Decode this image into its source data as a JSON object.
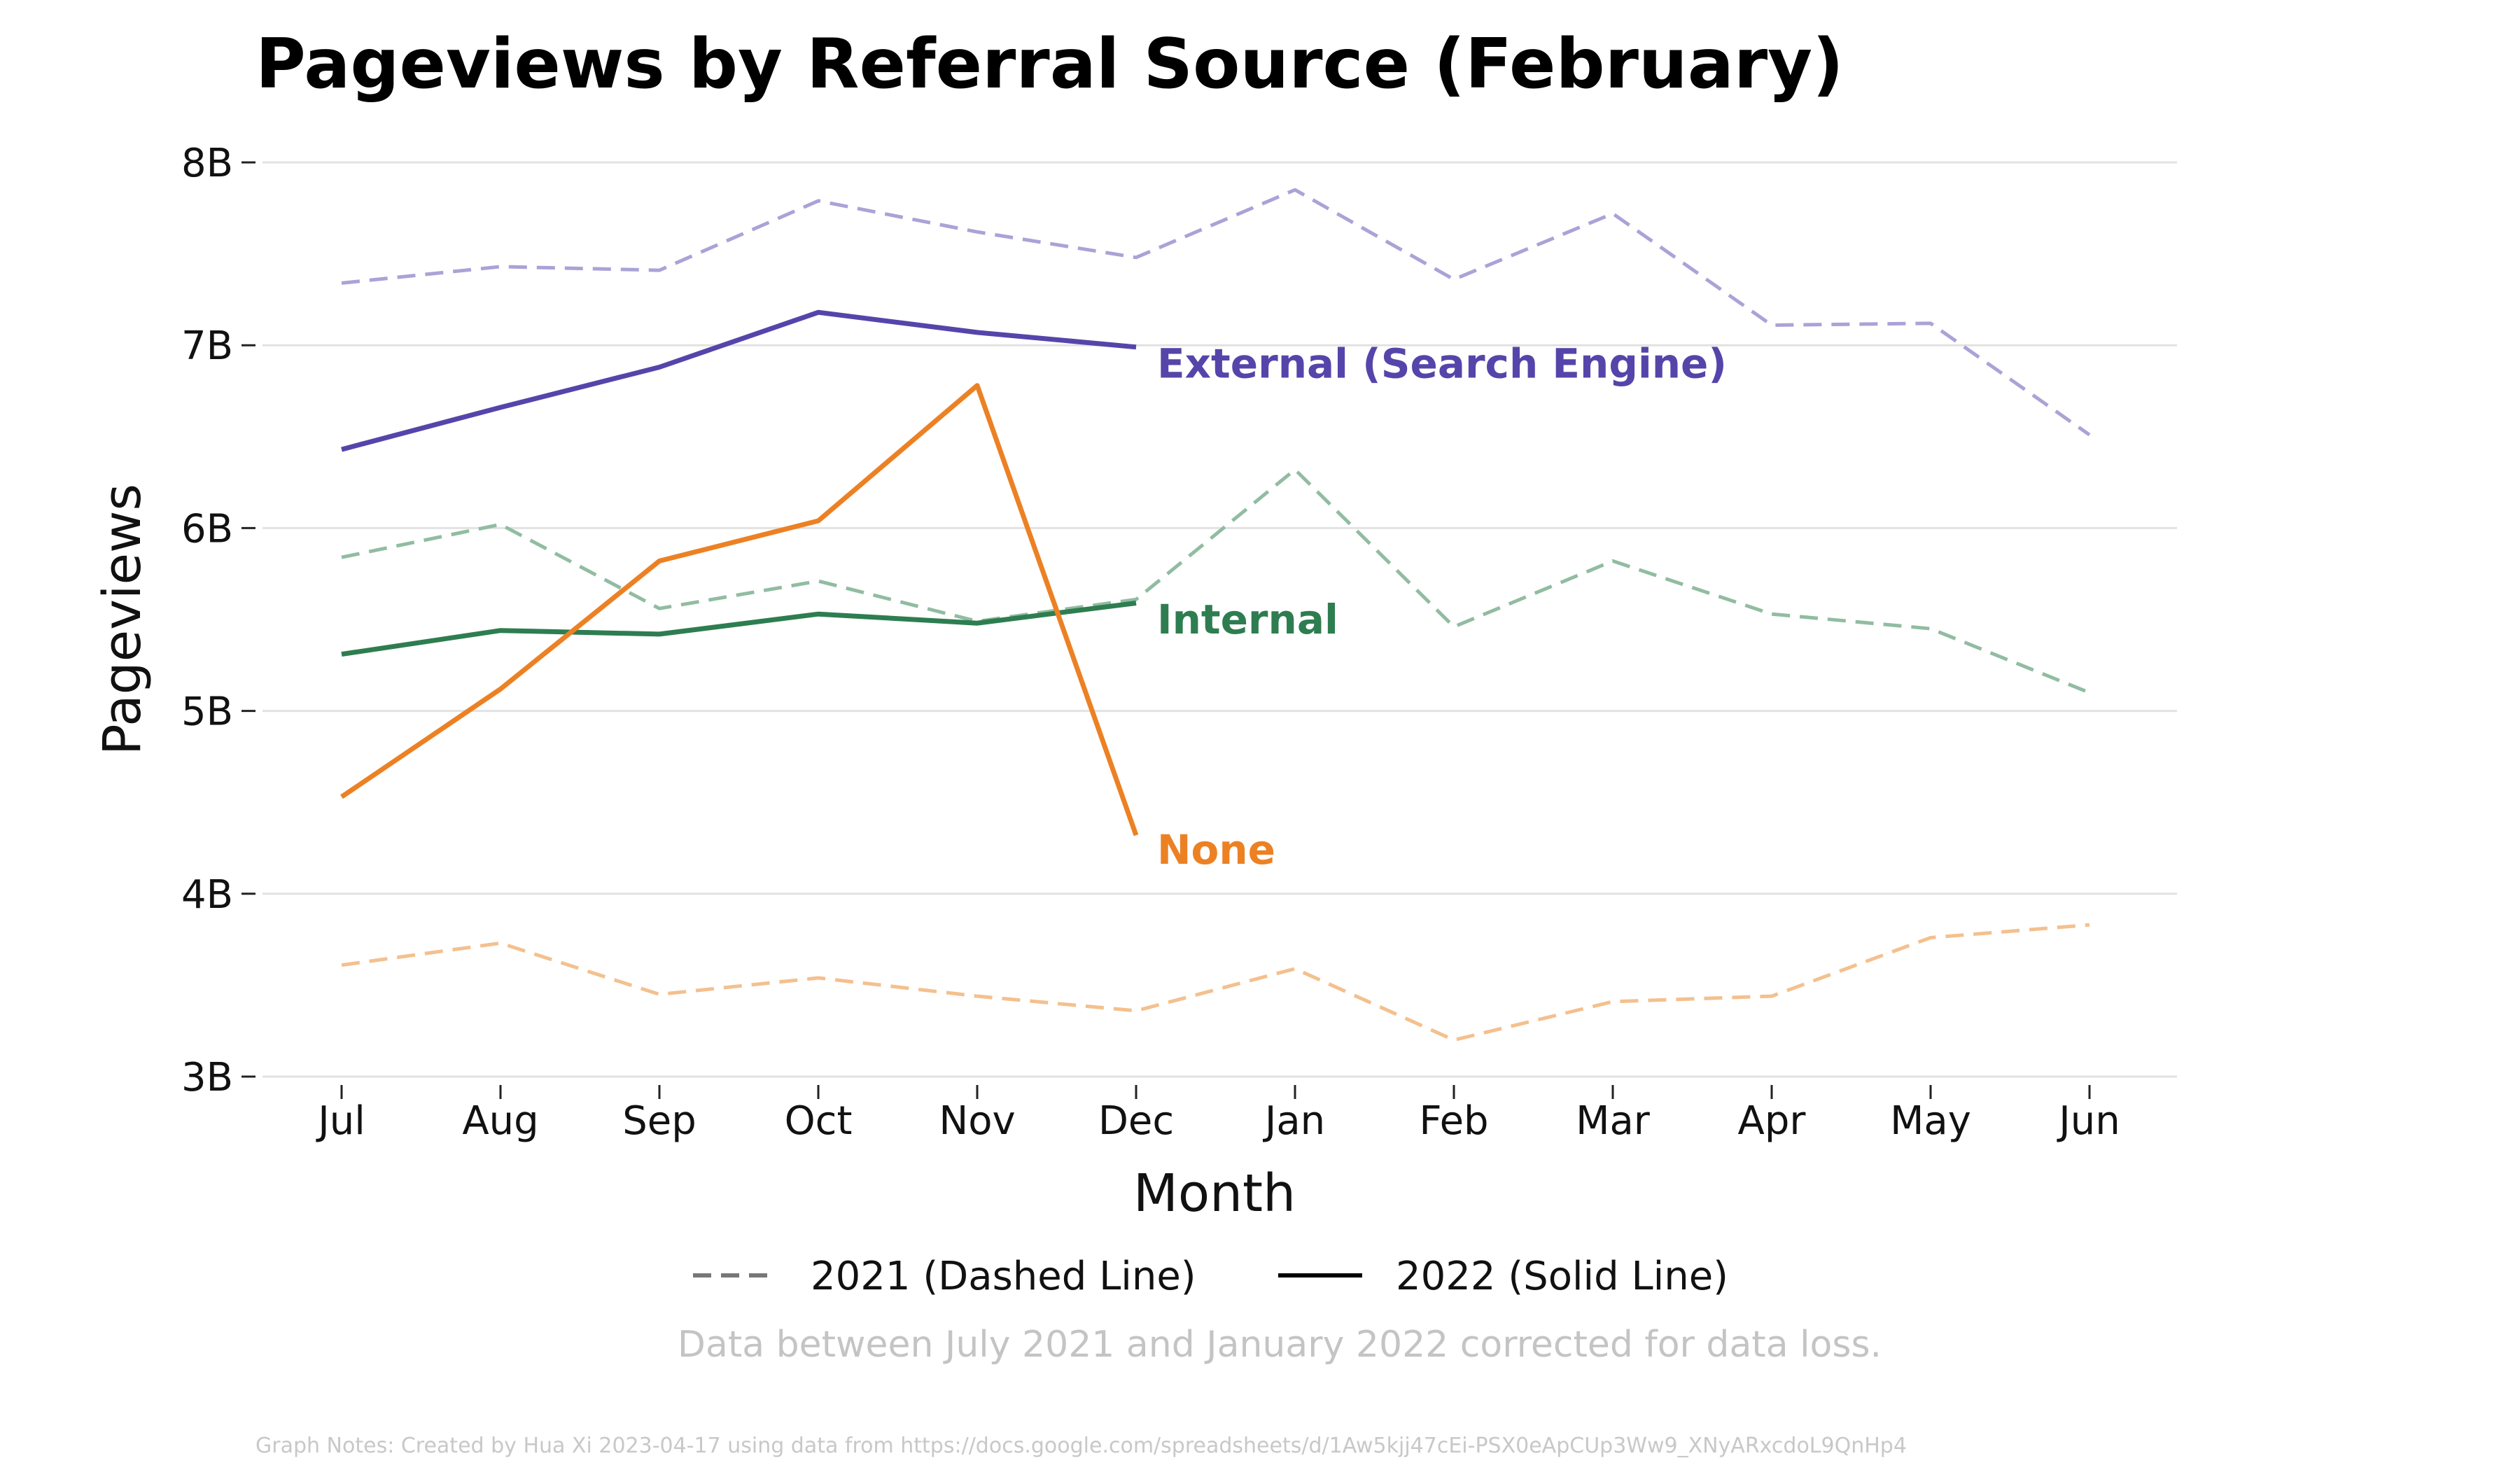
{
  "chart_data": {
    "type": "line",
    "title": "Pageviews by Referral Source (February)",
    "xlabel": "Month",
    "ylabel": "Pageviews",
    "categories": [
      "Jul",
      "Aug",
      "Sep",
      "Oct",
      "Nov",
      "Dec",
      "Jan",
      "Feb",
      "Mar",
      "Apr",
      "May",
      "Jun"
    ],
    "ylim": [
      3,
      8
    ],
    "y_ticks": [
      {
        "value": 8,
        "label": "8B"
      },
      {
        "value": 7,
        "label": "7B"
      },
      {
        "value": 6,
        "label": "6B"
      },
      {
        "value": 5,
        "label": "5B"
      },
      {
        "value": 4,
        "label": "4B"
      },
      {
        "value": 3,
        "label": "3B"
      }
    ],
    "y_unit": "billions of pageviews",
    "grid": "horizontal",
    "series": [
      {
        "name": "External (Search Engine)",
        "year": "2021",
        "style": "dashed",
        "color": "#a9a3d7",
        "values": [
          7.34,
          7.43,
          7.41,
          7.79,
          7.62,
          7.48,
          7.85,
          7.36,
          7.72,
          7.11,
          7.12,
          6.51
        ]
      },
      {
        "name": "Internal",
        "year": "2021",
        "style": "dashed",
        "color": "#91bca2",
        "values": [
          5.84,
          6.02,
          5.56,
          5.71,
          5.49,
          5.61,
          6.32,
          5.46,
          5.82,
          5.53,
          5.45,
          5.1
        ]
      },
      {
        "name": "None",
        "year": "2021",
        "style": "dashed",
        "color": "#f4c08e",
        "values": [
          3.61,
          3.73,
          3.45,
          3.54,
          3.44,
          3.36,
          3.59,
          3.2,
          3.41,
          3.44,
          3.76,
          3.83
        ]
      },
      {
        "name": "External (Search Engine)",
        "year": "2022",
        "style": "solid",
        "color": "#5545aa",
        "values": [
          6.43,
          6.66,
          6.88,
          7.18,
          7.07,
          6.99,
          null,
          null,
          null,
          null,
          null,
          null
        ]
      },
      {
        "name": "Internal",
        "year": "2022",
        "style": "solid",
        "color": "#2e7d50",
        "values": [
          5.31,
          5.44,
          5.42,
          5.53,
          5.48,
          5.59,
          null,
          null,
          null,
          null,
          null,
          null
        ]
      },
      {
        "name": "None",
        "year": "2022",
        "style": "solid",
        "color": "#ec8124",
        "values": [
          4.53,
          5.12,
          5.82,
          6.04,
          6.78,
          4.32,
          null,
          null,
          null,
          null,
          null,
          null
        ]
      }
    ],
    "end_labels": [
      {
        "text": "External (Search Engine)",
        "color": "#5545aa",
        "anchor_value": 6.9
      },
      {
        "text": "Internal",
        "color": "#2e7d50",
        "anchor_value": 5.5
      },
      {
        "text": "None",
        "color": "#ec8124",
        "anchor_value": 4.24
      }
    ],
    "legend": {
      "placement": "bottom-center",
      "items": [
        {
          "label": "2021 (Dashed Line)",
          "style": "dashed",
          "color": "#777777"
        },
        {
          "label": "2022 (Solid Line)",
          "style": "solid",
          "color": "#000000"
        }
      ]
    },
    "annotation": "Data between July 2021 and January 2022 corrected for data loss.",
    "footnote": "Graph Notes: Created by Hua Xi 2023-04-17 using data from https://docs.google.com/spreadsheets/d/1Aw5kjj47cEi-PSX0eApCUp3Ww9_XNyARxcdoL9QnHp4"
  }
}
